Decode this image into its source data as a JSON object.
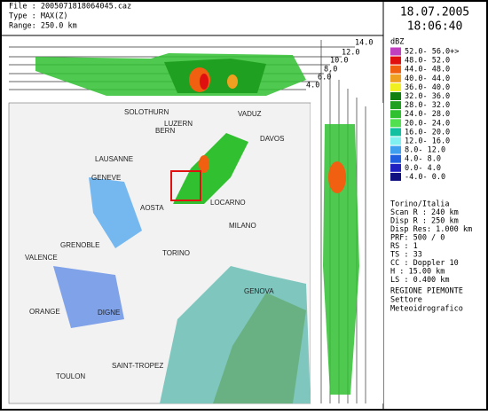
{
  "header": {
    "file": "File : 20050718180640­45.caz",
    "type": "Type : MAX(Z)",
    "range": "Range: 250.0 km"
  },
  "date": "18.07.2005",
  "time": "18:06:40",
  "legend": {
    "unit": "dBZ",
    "entries": [
      {
        "label": "52.0- 56.0+>",
        "color": "#c040c0"
      },
      {
        "label": "48.0- 52.0",
        "color": "#e01010"
      },
      {
        "label": "44.0- 48.0",
        "color": "#f06010"
      },
      {
        "label": "40.0- 44.0",
        "color": "#f0a020"
      },
      {
        "label": "36.0- 40.0",
        "color": "#f0f020"
      },
      {
        "label": "32.0- 36.0",
        "color": "#108010"
      },
      {
        "label": "28.0- 32.0",
        "color": "#20a020"
      },
      {
        "label": "24.0- 28.0",
        "color": "#30c030"
      },
      {
        "label": "20.0- 24.0",
        "color": "#50e050"
      },
      {
        "label": "16.0- 20.0",
        "color": "#10c0a0"
      },
      {
        "label": "12.0- 16.0",
        "color": "#80f0f0"
      },
      {
        "label": "8.0- 12.0",
        "color": "#40a0f0"
      },
      {
        "label": "4.0- 8.0",
        "color": "#2060e0"
      },
      {
        "label": "0.0- 4.0",
        "color": "#2020c0"
      },
      {
        "label": "-4.0- 0.0",
        "color": "#101080"
      }
    ]
  },
  "heights": [
    "14.0",
    "12.0",
    "10.0",
    "8.0",
    "6.0",
    "4.0"
  ],
  "cities": [
    "SOLOTHURN",
    "LUZERN",
    "VADUZ",
    "BERN",
    "DAVOS",
    "LAUSANNE",
    "GENEVE",
    "LOCARNO",
    "AOSTA",
    "MILANO",
    "GRENOBLE",
    "TORINO",
    "VALENCE",
    "GENOVA",
    "ORANGE",
    "DIGNE",
    "SAINT-TROPEZ",
    "TOULON"
  ],
  "station": [
    "Torino/Italia",
    "Scan R : 240 km",
    "Disp R : 250 km",
    "Disp Res: 1.000 km",
    "PRF: 500 / 0",
    "RS : 1",
    "TS : 33",
    "CC : Doppler 10",
    "H : 15.00 km",
    "LS : 0.400 km"
  ],
  "organization": [
    "REGIONE PIEMONTE",
    "Settore",
    "Meteoidrografico"
  ]
}
